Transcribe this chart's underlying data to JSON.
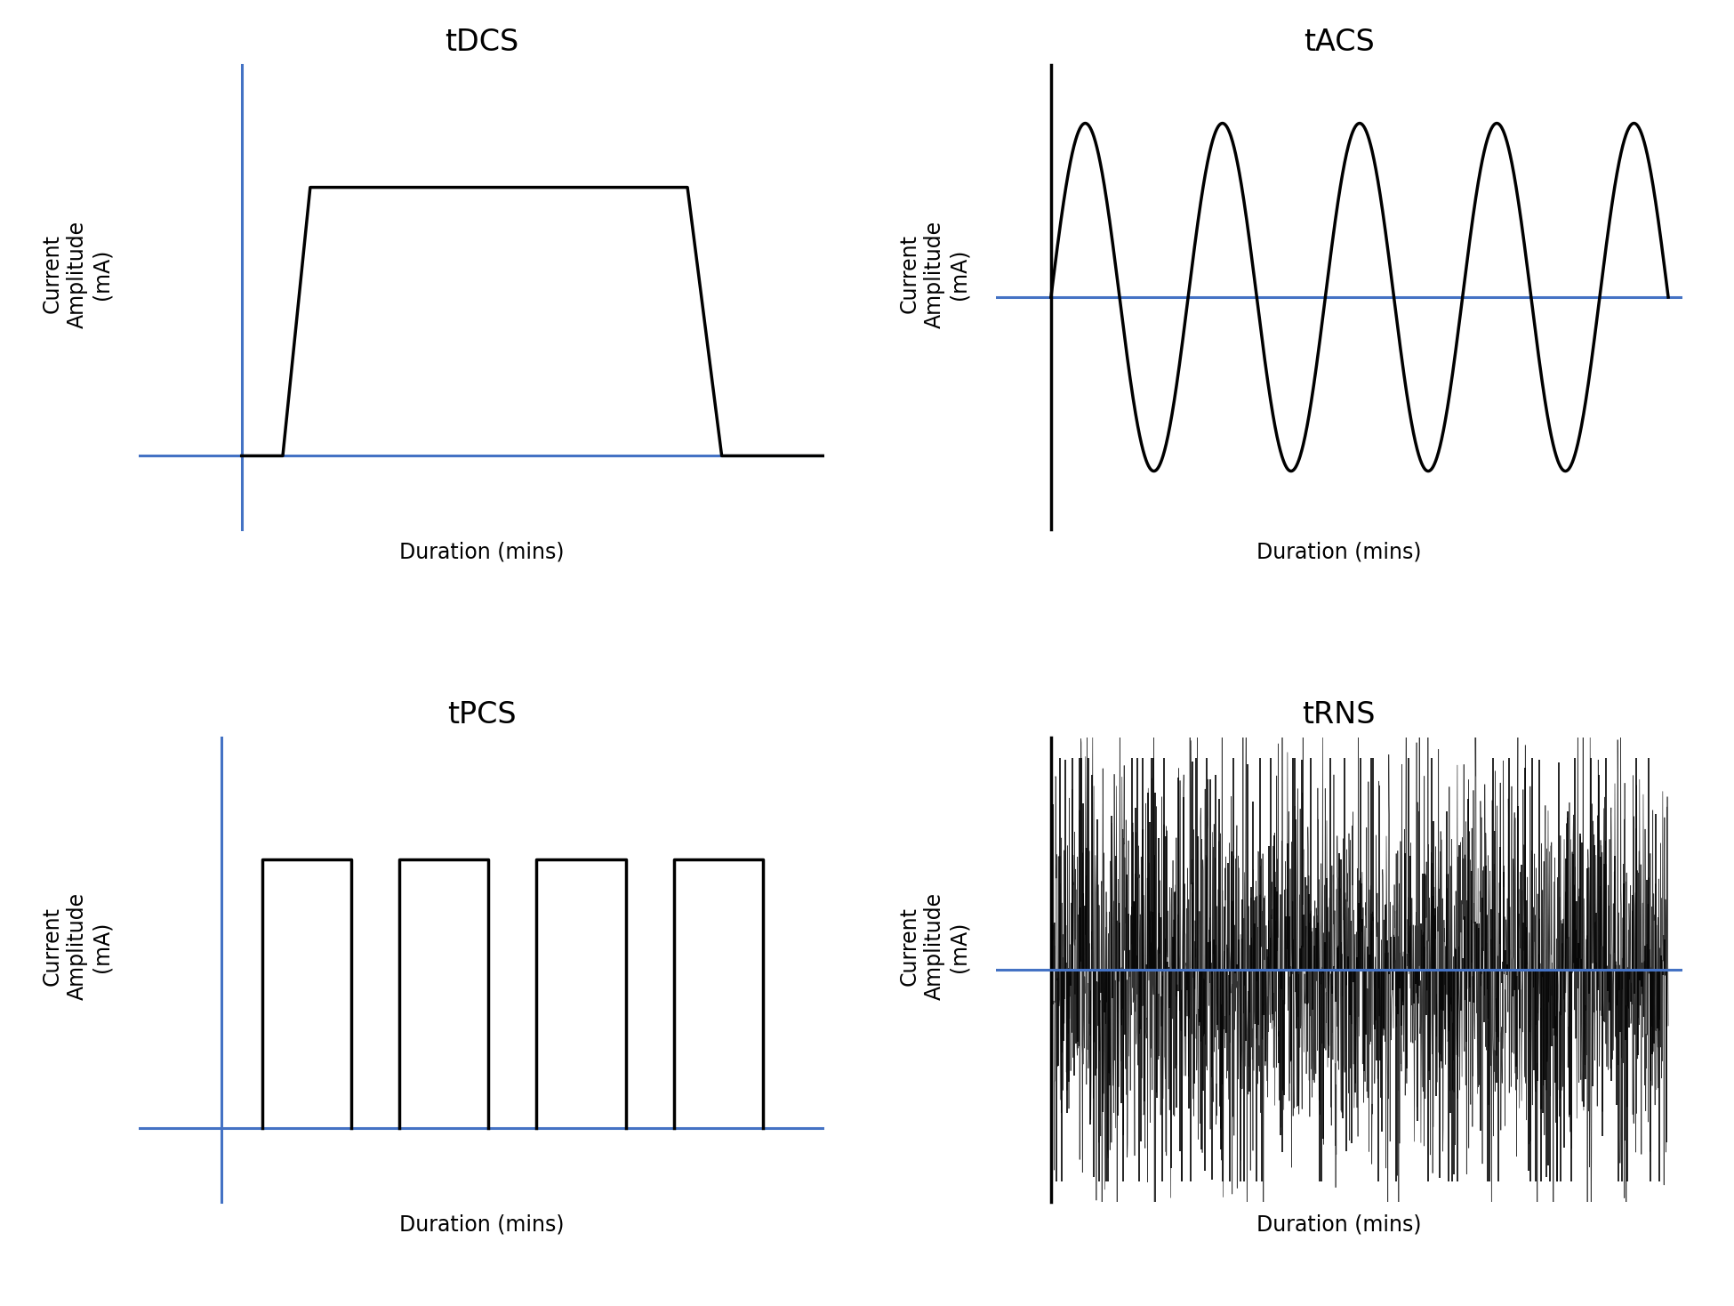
{
  "background_color": "#ffffff",
  "blue_color": "#4472C4",
  "black_color": "#000000",
  "titles": [
    "tDCS",
    "tACS",
    "tPCS",
    "tRNS"
  ],
  "ylabel_lines": [
    "Current",
    "Amplitude",
    "(mA)"
  ],
  "xlabel": "Duration (mins)",
  "title_fontsize": 24,
  "label_fontsize": 17,
  "axis_linewidth": 2.2,
  "signal_linewidth": 2.5
}
